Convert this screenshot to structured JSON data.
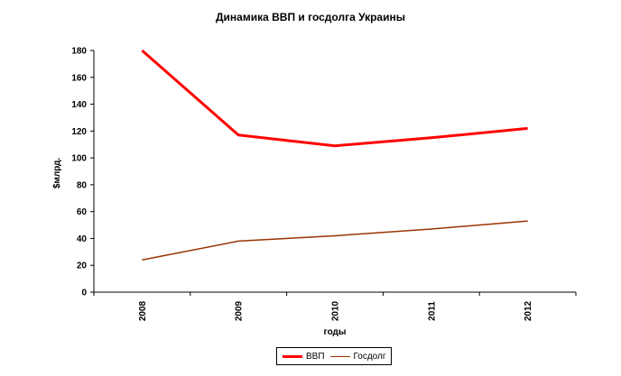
{
  "chart_data": {
    "type": "line",
    "title": "Динамика ВВП и госдолга Украины",
    "xlabel": "годы",
    "ylabel": "$млрд.",
    "categories": [
      "2008",
      "2009",
      "2010",
      "2011",
      "2012"
    ],
    "ylim": [
      0,
      180
    ],
    "yticks": [
      0,
      20,
      40,
      60,
      80,
      100,
      120,
      140,
      160,
      180
    ],
    "grid": false,
    "legend_position": "bottom",
    "series": [
      {
        "name": "ВВП",
        "values": [
          180,
          117,
          109,
          115,
          122
        ],
        "color": "#ff0000"
      },
      {
        "name": "Госдолг",
        "values": [
          24,
          38,
          42,
          47,
          53
        ],
        "color": "#993300"
      }
    ]
  }
}
